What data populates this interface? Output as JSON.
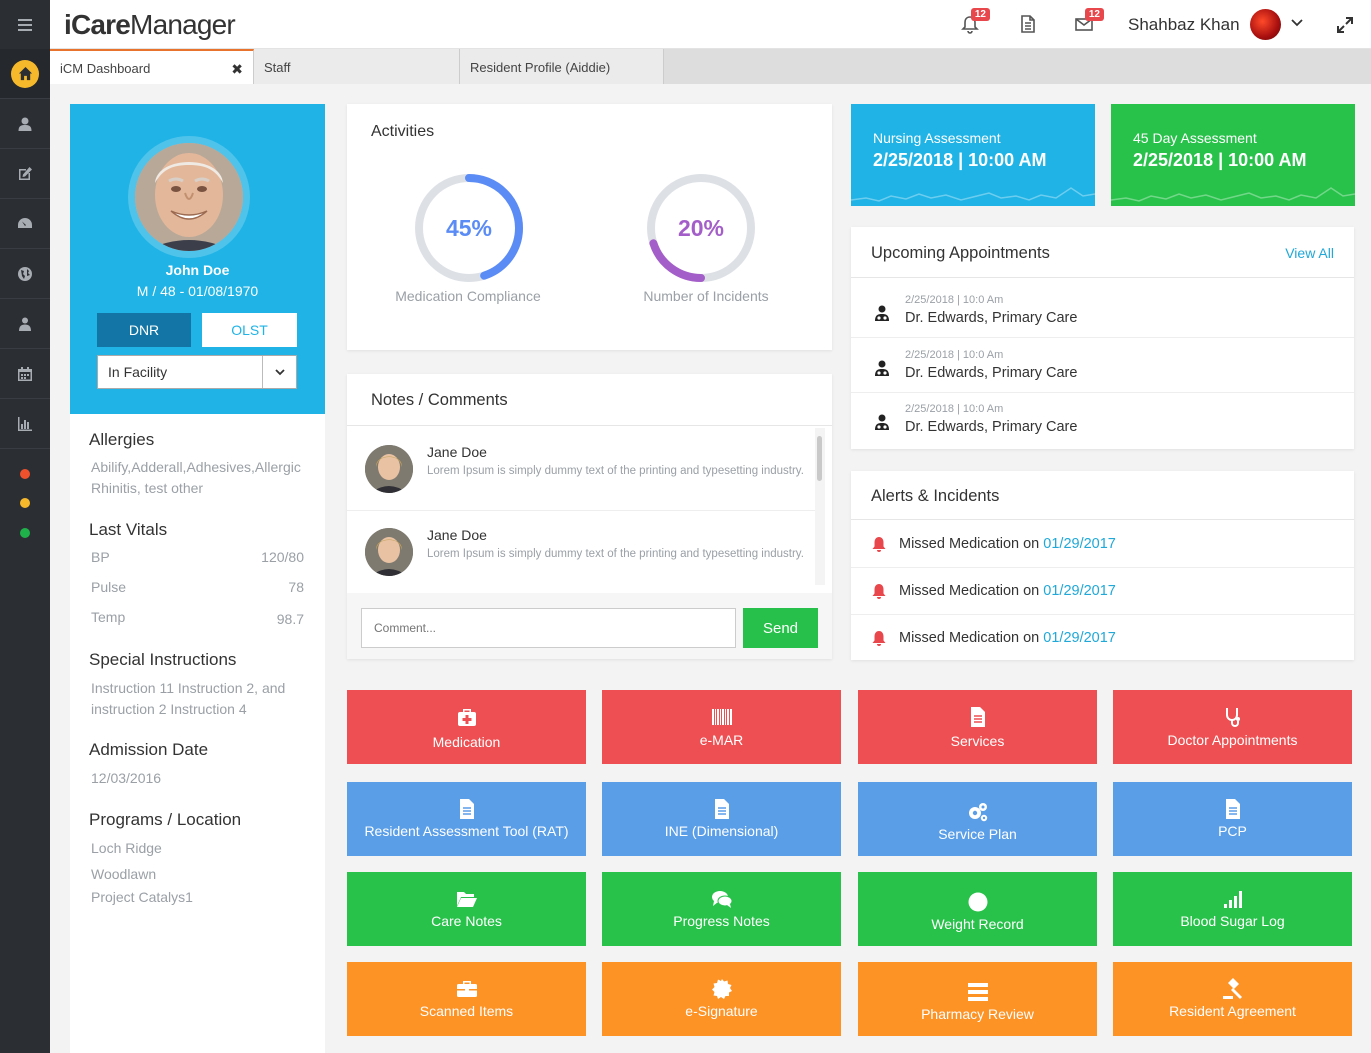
{
  "app": {
    "brand_a": "iCare",
    "brand_b": "Manager",
    "notif_badge": "12",
    "mail_badge": "12",
    "user_name": "Shahbaz Khan"
  },
  "rail": {
    "icons": [
      "home-icon",
      "user-icon",
      "edit-icon",
      "dashboard-icon",
      "globe-icon",
      "users-icon",
      "calendar-icon",
      "chart-icon"
    ],
    "status_colors": [
      "#f0512d",
      "#f6b92b",
      "#1fb24a"
    ]
  },
  "tabs": [
    {
      "label": "iCM Dashboard",
      "close": "✖"
    },
    {
      "label": "Staff"
    },
    {
      "label": "Resident Profile (Aiddie)"
    }
  ],
  "profile": {
    "name": "John Doe",
    "meta": "M / 48 - 01/08/1970",
    "dnr_label": "DNR",
    "olst_label": "OLST",
    "facility_value": "In Facility",
    "allergies_title": "Allergies",
    "allergies": "Abilify,Adderall,Adhesives,Allergic Rhinitis, test other",
    "vitals_title": "Last Vitals",
    "vitals": [
      {
        "label": "BP",
        "value": "120/80"
      },
      {
        "label": "Pulse",
        "value": "78"
      },
      {
        "label": "Temp",
        "value": "98.7"
      }
    ],
    "instructions_title": "Special Instructions",
    "instructions": "Instruction 11 Instruction 2, and instruction 2 Instruction 4",
    "admission_title": "Admission Date",
    "admission_date": "12/03/2016",
    "programs_title": "Programs / Location",
    "programs": [
      "Loch Ridge",
      "Woodlawn",
      "Project Catalys1"
    ]
  },
  "activities": {
    "title": "Activities",
    "compliance": {
      "value": 45,
      "text": "45%",
      "label": "Medication Compliance",
      "color": "#5b8cf6"
    },
    "incidents": {
      "value": 20,
      "text": "20%",
      "label": "Number of Incidents",
      "color": "#a45ec9"
    }
  },
  "notes": {
    "title": "Notes / Comments",
    "items": [
      {
        "name": "Jane Doe",
        "text": "Lorem Ipsum is simply dummy text of the printing and typesetting industry."
      },
      {
        "name": "Jane Doe",
        "text": "Lorem Ipsum is simply dummy text of the printing and typesetting industry."
      }
    ],
    "comment_placeholder": "Comment...",
    "send_label": "Send"
  },
  "assessments": [
    {
      "label": "Nursing Assessment",
      "value": "2/25/2018  |  10:00 AM",
      "color": "#1fb3e6"
    },
    {
      "label": "45 Day Assessment",
      "value": "2/25/2018  |  10:00 AM",
      "color": "#28c24b"
    }
  ],
  "appointments": {
    "title": "Upcoming Appointments",
    "view_all": "View All",
    "items": [
      {
        "meta": "2/25/2018  |  10:0 Am",
        "doctor": "Dr. Edwards, Primary Care"
      },
      {
        "meta": "2/25/2018  |  10:0 Am",
        "doctor": "Dr. Edwards, Primary Care"
      },
      {
        "meta": "2/25/2018  |  10:0 Am",
        "doctor": "Dr. Edwards, Primary Care"
      }
    ]
  },
  "alerts": {
    "title": "Alerts & Incidents",
    "items": [
      {
        "text": "Missed Medication on",
        "date": "01/29/2017"
      },
      {
        "text": "Missed Medication on",
        "date": "01/29/2017"
      },
      {
        "text": "Missed Medication on",
        "date": "01/29/2017"
      }
    ]
  },
  "tiles": [
    {
      "label": "Medication",
      "icon": "medkit-icon",
      "color": "red"
    },
    {
      "label": "e-MAR",
      "icon": "barcode-icon",
      "color": "red"
    },
    {
      "label": "Services",
      "icon": "document-icon",
      "color": "red"
    },
    {
      "label": "Doctor Appointments",
      "icon": "stethoscope-icon",
      "color": "red"
    },
    {
      "label": "Resident Assessment Tool (RAT)",
      "icon": "document-icon",
      "color": "blue"
    },
    {
      "label": "INE (Dimensional)",
      "icon": "document-icon",
      "color": "blue"
    },
    {
      "label": "Service Plan",
      "icon": "gears-icon",
      "color": "blue"
    },
    {
      "label": "PCP",
      "icon": "document-icon",
      "color": "blue"
    },
    {
      "label": "Care Notes",
      "icon": "folder-icon",
      "color": "green"
    },
    {
      "label": "Progress Notes",
      "icon": "chat-icon",
      "color": "green"
    },
    {
      "label": "Weight Record",
      "icon": "circle-icon",
      "color": "green"
    },
    {
      "label": "Blood Sugar Log",
      "icon": "signal-icon",
      "color": "green"
    },
    {
      "label": "Scanned Items",
      "icon": "briefcase-icon",
      "color": "orange"
    },
    {
      "label": "e-Signature",
      "icon": "badge-icon",
      "color": "orange"
    },
    {
      "label": "Pharmacy Review",
      "icon": "list-icon",
      "color": "orange"
    },
    {
      "label": "Resident Agreement",
      "icon": "gavel-icon",
      "color": "orange"
    }
  ]
}
